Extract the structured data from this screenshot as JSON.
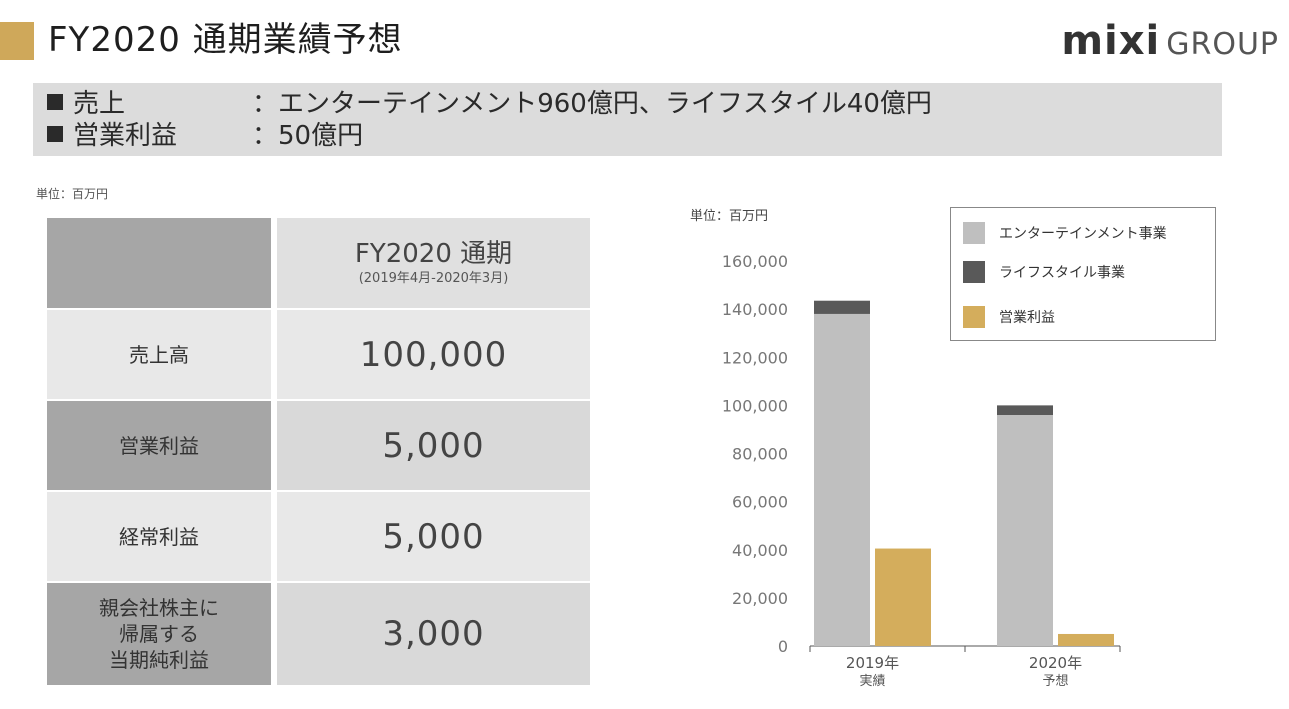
{
  "header": {
    "title": "FY2020 通期業績予想",
    "logo_main": "mixi",
    "logo_sub": "GROUP"
  },
  "summary": {
    "rows": [
      {
        "label": "売上",
        "value": "：エンターテインメント960億円、ライフスタイル40億円"
      },
      {
        "label": "営業利益",
        "value": "：50億円"
      }
    ]
  },
  "table": {
    "unit": "単位：百万円",
    "header_main": "FY2020 通期",
    "header_sub": "(2019年4月-2020年3月)",
    "rows": [
      {
        "label_lines": [
          "売上高"
        ],
        "value": "100,000"
      },
      {
        "label_lines": [
          "営業利益"
        ],
        "value": "5,000"
      },
      {
        "label_lines": [
          "経常利益"
        ],
        "value": "5,000"
      },
      {
        "label_lines": [
          "親会社株主に",
          "帰属する",
          "当期純利益"
        ],
        "value": "3,000"
      }
    ]
  },
  "chart_data": {
    "type": "bar",
    "unit_label": "単位：百万円",
    "categories": [
      [
        "2019年",
        "実績"
      ],
      [
        "2020年",
        "予想"
      ]
    ],
    "series": [
      {
        "name": "エンターテインメント事業",
        "color": "#bfbfbf",
        "values": [
          138000,
          96000
        ],
        "stack": "sales"
      },
      {
        "name": "ライフスタイル事業",
        "color": "#595959",
        "values": [
          5500,
          4000
        ],
        "stack": "sales"
      },
      {
        "name": "営業利益",
        "color": "#d4ad5c",
        "values": [
          40500,
          5000
        ],
        "stack": "op"
      }
    ],
    "ylim": [
      0,
      160000
    ],
    "yticks": [
      "0",
      "20,000",
      "40,000",
      "60,000",
      "80,000",
      "100,000",
      "120,000",
      "140,000",
      "160,000"
    ],
    "ytick_values": [
      0,
      20000,
      40000,
      60000,
      80000,
      100000,
      120000,
      140000,
      160000
    ],
    "legend_position": "top-right",
    "grid": false
  }
}
